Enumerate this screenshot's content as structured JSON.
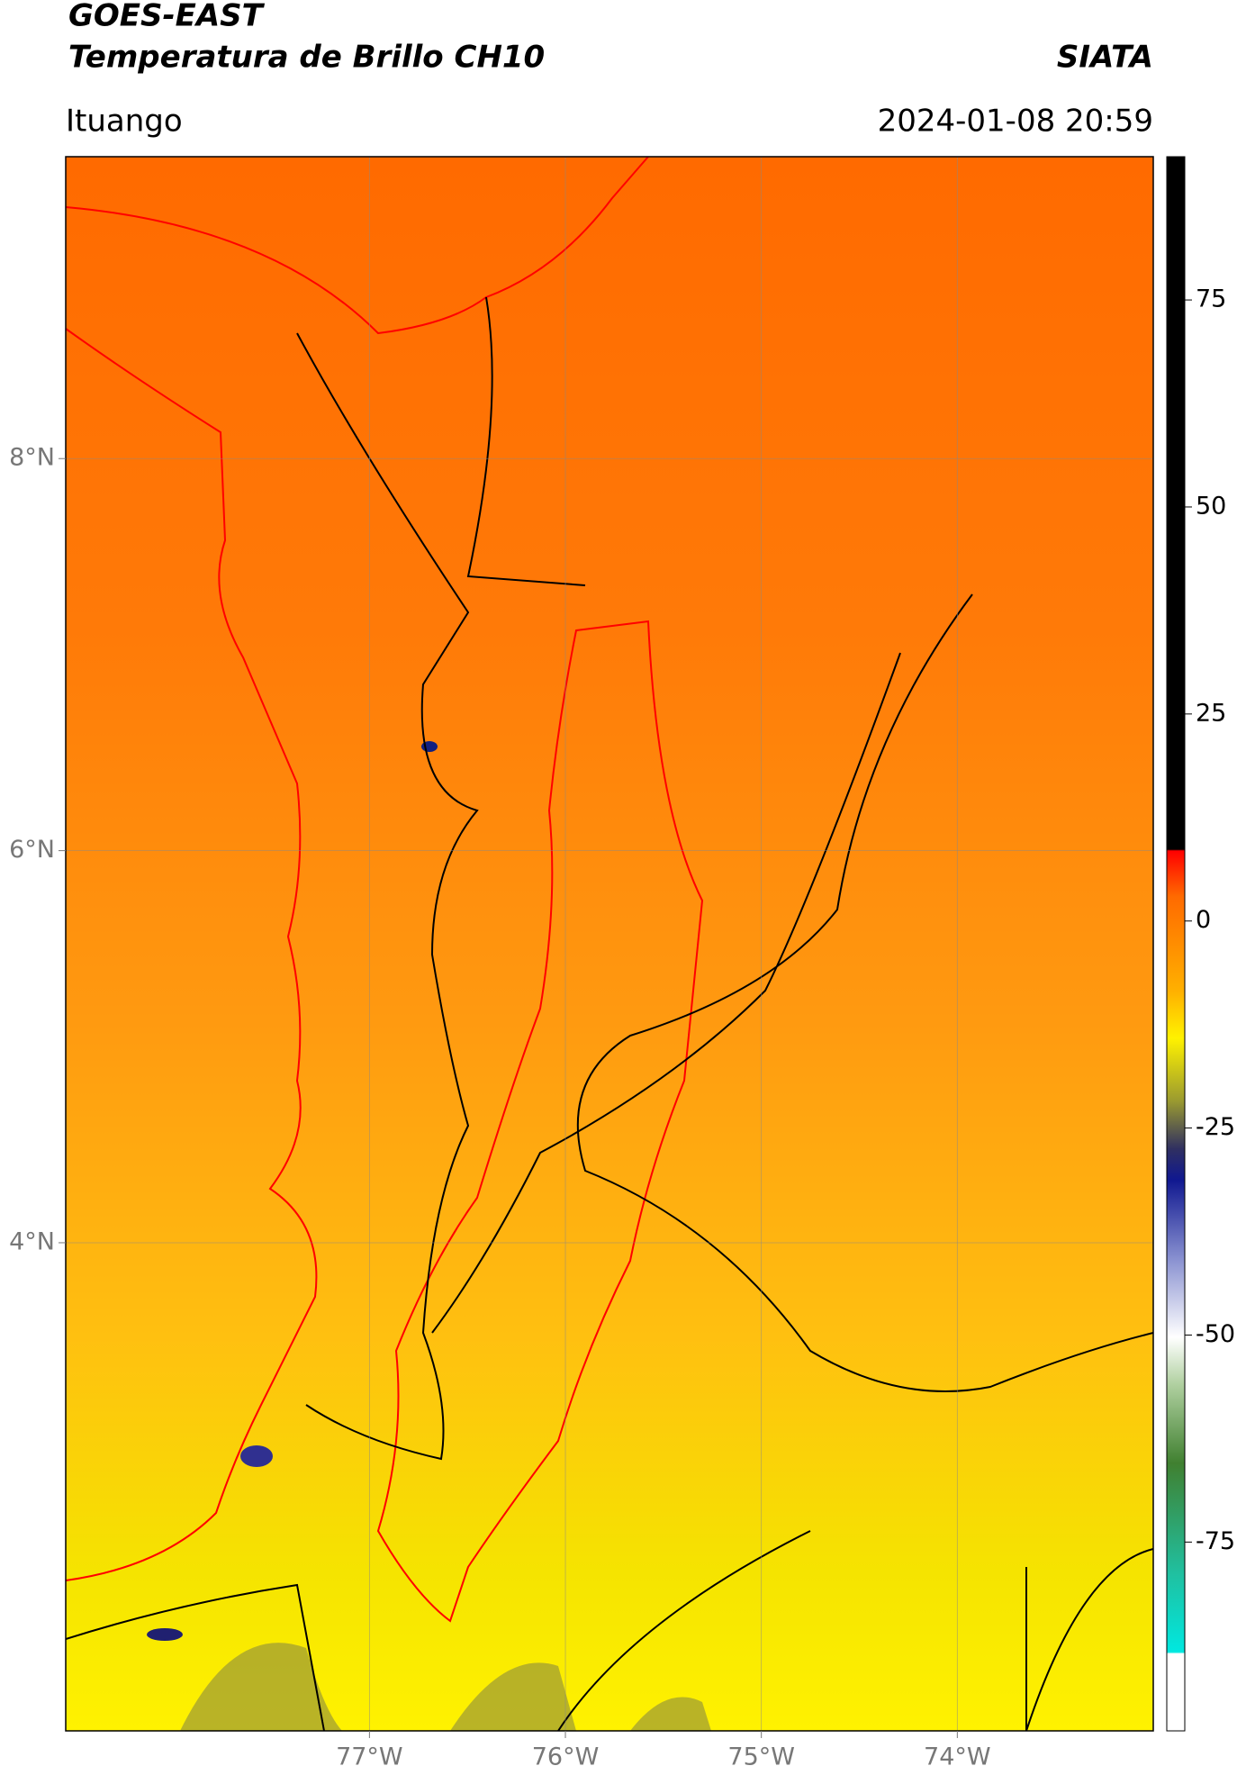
{
  "chart_data": {
    "type": "map",
    "title": "GOES-EAST",
    "subtitle": "Temperatura de Brillo CH10",
    "source": "SIATA",
    "location": "Ituango",
    "datetime": "2024-01-08 20:59",
    "xlim": [
      -78.55,
      -73.0
    ],
    "ylim": [
      1.51,
      9.54
    ],
    "xticks": [
      {
        "value": -77,
        "label": "77°W"
      },
      {
        "value": -76,
        "label": "76°W"
      },
      {
        "value": -75,
        "label": "75°W"
      },
      {
        "value": -74,
        "label": "74°W"
      }
    ],
    "yticks": [
      {
        "value": 8,
        "label": "8°N"
      },
      {
        "value": 6,
        "label": "6°N"
      },
      {
        "value": 4,
        "label": "4°N"
      }
    ],
    "grid": true,
    "colorbar": {
      "lim": [
        -97.8,
        92.3
      ],
      "ticks": [
        75,
        50,
        25,
        0,
        -25,
        -50,
        -75
      ]
    }
  }
}
